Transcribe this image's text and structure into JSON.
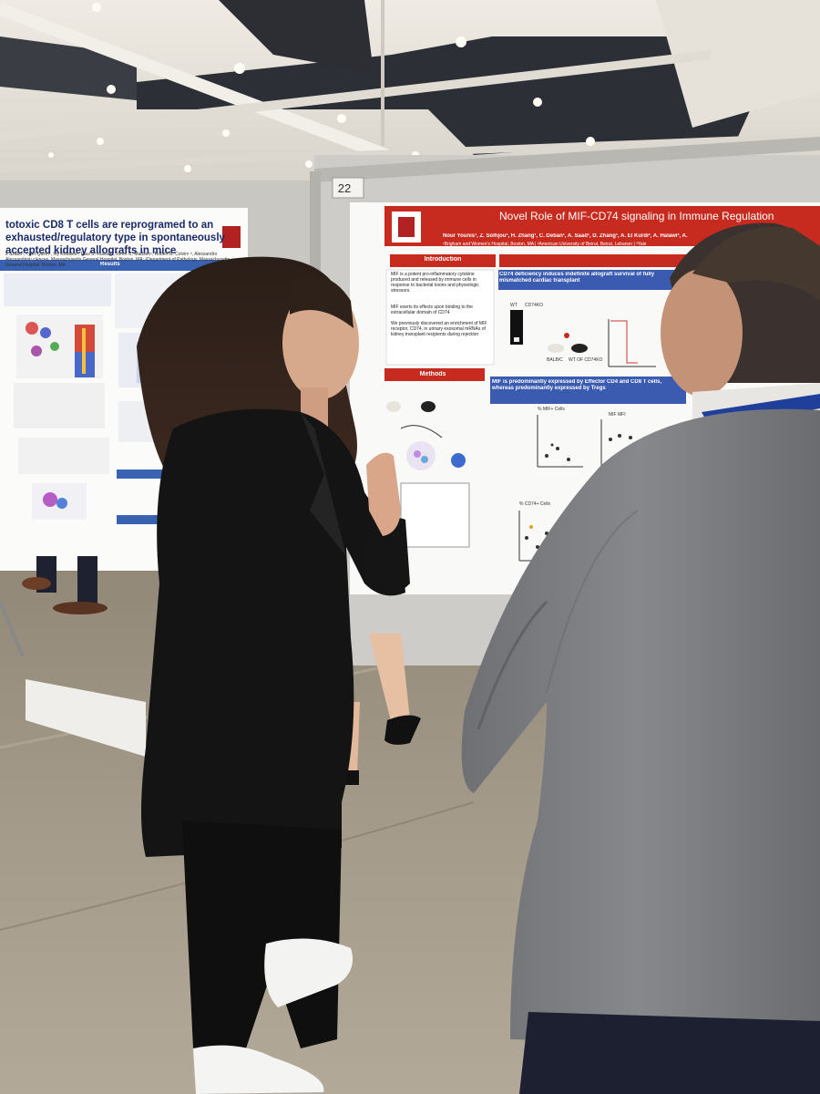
{
  "scene": {
    "colors": {
      "ceiling": "#e8e4dd",
      "floor": "#a49a8a",
      "poster_blue": "#3a62b3",
      "poster_red": "#c72a1f",
      "jacket_black": "#141414",
      "suit_grey": "#7b7d80"
    }
  },
  "board": {
    "number": "22"
  },
  "poster_left": {
    "title": "totoxic CD8 T cells are reprogramed to an exhausted/regulatory type in spontaneously accepted kidney allografts in mice",
    "authors": "s Szabo¹, Tyler Quinn¹, Ivy Rosales¹, Paul S. Russell¹, Joren C. Madsen¹, Robert B. Colvin¹ ², Alessandro Alessandrini¹ ciences, Massachusetts General Hospital, Boston, MA; ²Department of Pathology, Massachusetts General Hospital, Boston, MA",
    "results_label": "Results"
  },
  "poster_right": {
    "title": "Novel Role of MIF-CD74 signaling in Immune Regulation",
    "authors": "Nour Younis¹, Z. Solhjou¹, H. Zhang¹, C. Deban¹, A. Saad¹, D. Zhang¹, A. El Kurdi², A. Halawi², A.",
    "affiliations": "¹Brigham and Women's Hospital, Boston, MA | ²American University of Beirut, Beirut, Lebanon | ³Yale",
    "section_intro": "Introduction",
    "section_methods": "Methods",
    "heading_cd74": "CD74 deficiency induces indefinite allograft survival of fully mismatched cardiac transplant",
    "heading_mif": "MIF is predominantly expressed by Effector CD4 and CD8 T cells, whereas predominantly expressed by Tregs",
    "intro_bullets": [
      "MIF is a potent pro-inflammatory cytokine produced and released by immune cells in response to bacterial toxins and physiologic stressors.",
      "MIF exerts its effects upon binding to the extracellular domain of CD74",
      "We previously discovered an enrichment of MIF receptor, CD74, in urinary exosomal mRNAs of kidney transplant recipients during rejection"
    ],
    "chart_labels": {
      "mif_cells": "% MIF+ Cells",
      "mif_mfi": "MIF MFI",
      "cd74_cells": "% CD74+ Cells",
      "wt": "WT",
      "cd74ko": "CD74KO",
      "balbc": "BALB/C",
      "wt_of_cd74ko": "WT OF CD74KO"
    }
  }
}
